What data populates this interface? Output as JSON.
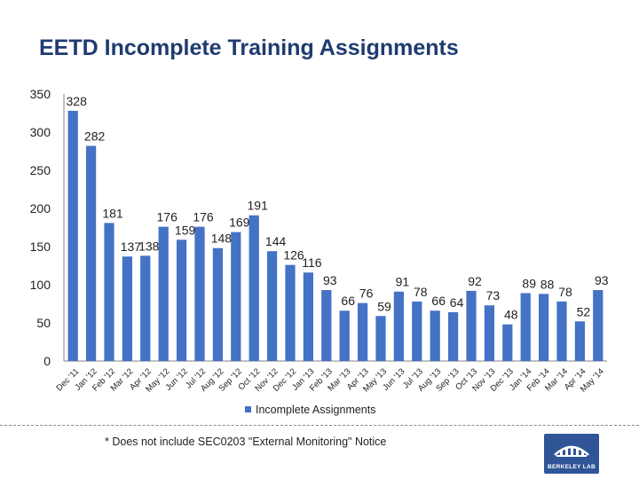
{
  "header": {
    "title": "EETD Incomplete Training Assignments"
  },
  "footnote": {
    "text": "* Does not include SEC0203 \"External Monitoring\" Notice"
  },
  "logo": {
    "text": "BERKELEY LAB"
  },
  "colors": {
    "bar": "#4472c4",
    "title": "#1f3b70",
    "axis": "#808080"
  },
  "chart_data": {
    "type": "bar",
    "title": "EETD Incomplete Training Assignments",
    "xlabel": "",
    "ylabel": "",
    "ylim": [
      0,
      350
    ],
    "yticks": [
      0,
      50,
      100,
      150,
      200,
      250,
      300,
      350
    ],
    "grid": false,
    "legend_position": "bottom",
    "categories": [
      "Dec '11",
      "Jan '12",
      "Feb '12",
      "Mar '12",
      "Apr '12",
      "May '12",
      "Jun '12",
      "Jul '12",
      "Aug '12",
      "Sep '12",
      "Oct '12",
      "Nov '12",
      "Dec '12",
      "Jan '13",
      "Feb '13",
      "Mar '13",
      "Apr '13",
      "May '13",
      "Jun '13",
      "Jul '13",
      "Aug '13",
      "Sep '13",
      "Oct '13",
      "Nov '13",
      "Dec '13",
      "Jan '14",
      "Feb '14",
      "Mar '14",
      "Apr '14",
      "May '14"
    ],
    "series": [
      {
        "name": "Incomplete Assignments",
        "values": [
          328,
          282,
          181,
          137,
          138,
          176,
          159,
          176,
          148,
          169,
          191,
          144,
          126,
          116,
          93,
          66,
          76,
          59,
          91,
          78,
          66,
          64,
          92,
          73,
          48,
          89,
          88,
          78,
          52,
          93
        ]
      }
    ]
  }
}
